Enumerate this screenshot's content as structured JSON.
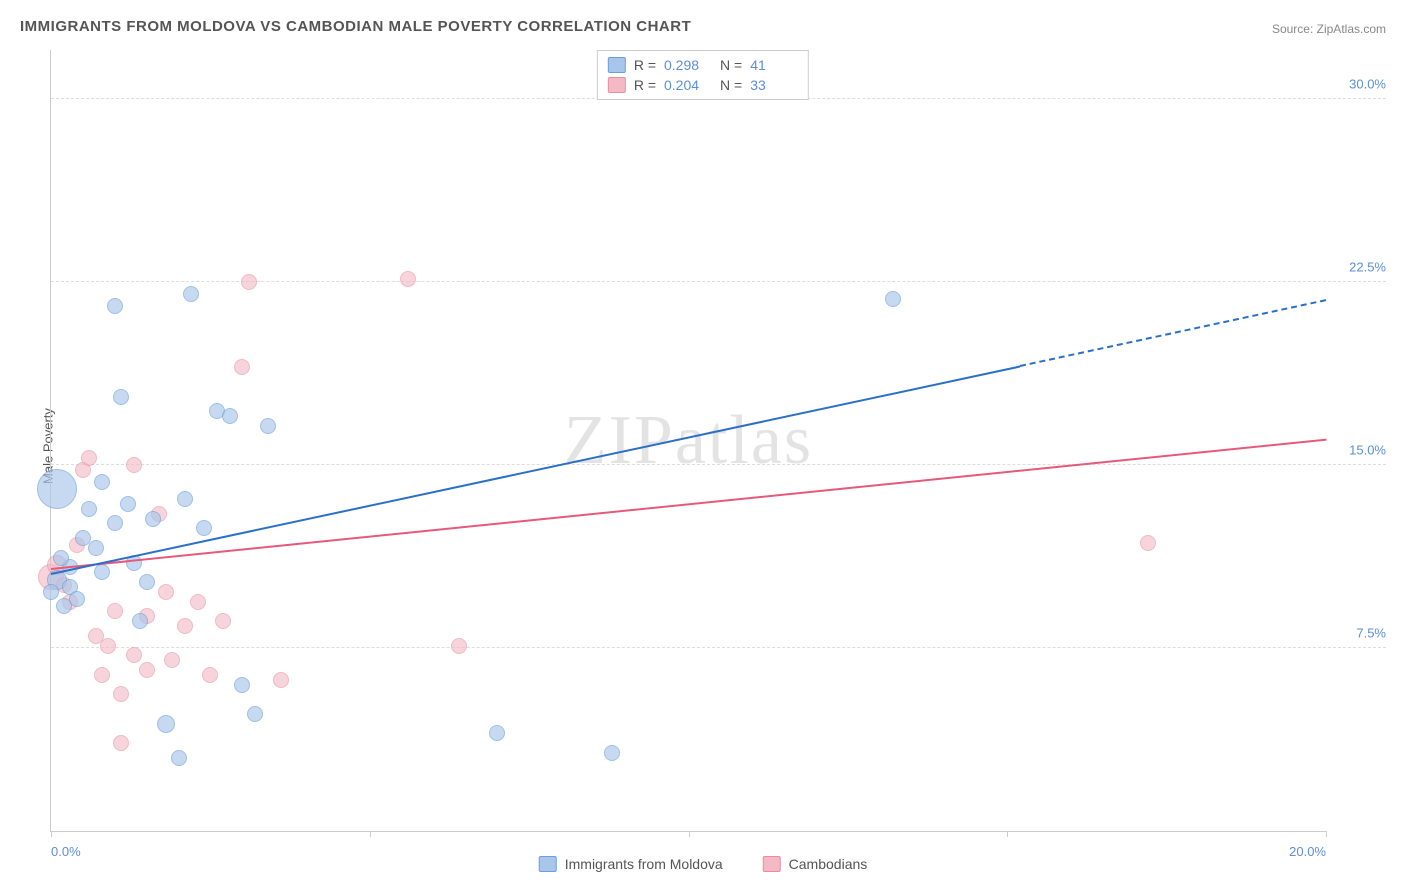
{
  "title": "IMMIGRANTS FROM MOLDOVA VS CAMBODIAN MALE POVERTY CORRELATION CHART",
  "source_label": "Source:",
  "source_value": "ZipAtlas.com",
  "y_axis_label": "Male Poverty",
  "watermark": "ZIPatlas",
  "chart": {
    "type": "scatter",
    "background_color": "#ffffff",
    "grid_color": "#dddddd",
    "axis_color": "#cccccc",
    "xlim": [
      0,
      20
    ],
    "ylim": [
      0,
      32
    ],
    "y_ticks": [
      7.5,
      15.0,
      22.5,
      30.0
    ],
    "y_tick_labels": [
      "7.5%",
      "15.0%",
      "22.5%",
      "30.0%"
    ],
    "x_ticks": [
      0,
      5,
      10,
      15,
      20
    ],
    "x_tick_labels_shown": {
      "0": "0.0%",
      "20": "20.0%"
    },
    "tick_label_color": "#5b8fd6",
    "tick_label_fontsize": 13
  },
  "series": {
    "moldova": {
      "label": "Immigrants from Moldova",
      "fill_color": "#a8c6ea",
      "stroke_color": "#6a9fd8",
      "line_color": "#2a6fc9",
      "opacity": 0.65,
      "R": "0.298",
      "N": "41",
      "trend": {
        "x0": 0,
        "y0": 10.5,
        "x1_solid": 15.2,
        "y1_solid": 19.0,
        "x1_dash": 20,
        "y1_dash": 21.7
      },
      "points": [
        {
          "x": 0.1,
          "y": 10.3,
          "r": 10
        },
        {
          "x": 0.1,
          "y": 14.0,
          "r": 20
        },
        {
          "x": 0.0,
          "y": 9.8,
          "r": 8
        },
        {
          "x": 0.2,
          "y": 9.2,
          "r": 8
        },
        {
          "x": 0.3,
          "y": 10.8,
          "r": 8
        },
        {
          "x": 0.3,
          "y": 10.0,
          "r": 8
        },
        {
          "x": 0.15,
          "y": 11.2,
          "r": 8
        },
        {
          "x": 0.4,
          "y": 9.5,
          "r": 8
        },
        {
          "x": 0.5,
          "y": 12.0,
          "r": 8
        },
        {
          "x": 0.6,
          "y": 13.2,
          "r": 8
        },
        {
          "x": 0.7,
          "y": 11.6,
          "r": 8
        },
        {
          "x": 0.8,
          "y": 10.6,
          "r": 8
        },
        {
          "x": 0.8,
          "y": 14.3,
          "r": 8
        },
        {
          "x": 1.0,
          "y": 12.6,
          "r": 8
        },
        {
          "x": 1.0,
          "y": 21.5,
          "r": 8
        },
        {
          "x": 1.1,
          "y": 17.8,
          "r": 8
        },
        {
          "x": 1.2,
          "y": 13.4,
          "r": 8
        },
        {
          "x": 1.3,
          "y": 11.0,
          "r": 8
        },
        {
          "x": 1.4,
          "y": 8.6,
          "r": 8
        },
        {
          "x": 1.5,
          "y": 10.2,
          "r": 8
        },
        {
          "x": 1.6,
          "y": 12.8,
          "r": 8
        },
        {
          "x": 1.8,
          "y": 4.4,
          "r": 9
        },
        {
          "x": 2.0,
          "y": 3.0,
          "r": 8
        },
        {
          "x": 2.1,
          "y": 13.6,
          "r": 8
        },
        {
          "x": 2.2,
          "y": 22.0,
          "r": 8
        },
        {
          "x": 2.4,
          "y": 12.4,
          "r": 8
        },
        {
          "x": 2.6,
          "y": 17.2,
          "r": 8
        },
        {
          "x": 2.8,
          "y": 17.0,
          "r": 8
        },
        {
          "x": 3.0,
          "y": 6.0,
          "r": 8
        },
        {
          "x": 3.2,
          "y": 4.8,
          "r": 8
        },
        {
          "x": 3.4,
          "y": 16.6,
          "r": 8
        },
        {
          "x": 7.0,
          "y": 4.0,
          "r": 8
        },
        {
          "x": 8.8,
          "y": 3.2,
          "r": 8
        },
        {
          "x": 13.2,
          "y": 21.8,
          "r": 8
        }
      ]
    },
    "cambodians": {
      "label": "Cambodians",
      "fill_color": "#f3b9c4",
      "stroke_color": "#e98ca0",
      "line_color": "#e55a7a",
      "opacity": 0.6,
      "R": "0.204",
      "N": "33",
      "trend": {
        "x0": 0,
        "y0": 10.7,
        "x1_solid": 20,
        "y1_solid": 16.0
      },
      "points": [
        {
          "x": 0.0,
          "y": 10.4,
          "r": 13
        },
        {
          "x": 0.1,
          "y": 10.9,
          "r": 10
        },
        {
          "x": 0.2,
          "y": 10.1,
          "r": 8
        },
        {
          "x": 0.3,
          "y": 9.4,
          "r": 8
        },
        {
          "x": 0.4,
          "y": 11.7,
          "r": 8
        },
        {
          "x": 0.5,
          "y": 14.8,
          "r": 8
        },
        {
          "x": 0.6,
          "y": 15.3,
          "r": 8
        },
        {
          "x": 0.7,
          "y": 8.0,
          "r": 8
        },
        {
          "x": 0.8,
          "y": 6.4,
          "r": 8
        },
        {
          "x": 0.9,
          "y": 7.6,
          "r": 8
        },
        {
          "x": 1.0,
          "y": 9.0,
          "r": 8
        },
        {
          "x": 1.1,
          "y": 5.6,
          "r": 8
        },
        {
          "x": 1.3,
          "y": 15.0,
          "r": 8
        },
        {
          "x": 1.3,
          "y": 7.2,
          "r": 8
        },
        {
          "x": 1.5,
          "y": 6.6,
          "r": 8
        },
        {
          "x": 1.5,
          "y": 8.8,
          "r": 8
        },
        {
          "x": 1.7,
          "y": 13.0,
          "r": 8
        },
        {
          "x": 1.8,
          "y": 9.8,
          "r": 8
        },
        {
          "x": 1.9,
          "y": 7.0,
          "r": 8
        },
        {
          "x": 2.1,
          "y": 8.4,
          "r": 8
        },
        {
          "x": 2.3,
          "y": 9.4,
          "r": 8
        },
        {
          "x": 2.5,
          "y": 6.4,
          "r": 8
        },
        {
          "x": 2.7,
          "y": 8.6,
          "r": 8
        },
        {
          "x": 3.0,
          "y": 19.0,
          "r": 8
        },
        {
          "x": 3.1,
          "y": 22.5,
          "r": 8
        },
        {
          "x": 3.6,
          "y": 6.2,
          "r": 8
        },
        {
          "x": 5.6,
          "y": 22.6,
          "r": 8
        },
        {
          "x": 6.4,
          "y": 7.6,
          "r": 8
        },
        {
          "x": 17.2,
          "y": 11.8,
          "r": 8
        },
        {
          "x": 1.1,
          "y": 3.6,
          "r": 8
        }
      ]
    }
  },
  "legend_top": {
    "R_label": "R =",
    "N_label": "N ="
  }
}
